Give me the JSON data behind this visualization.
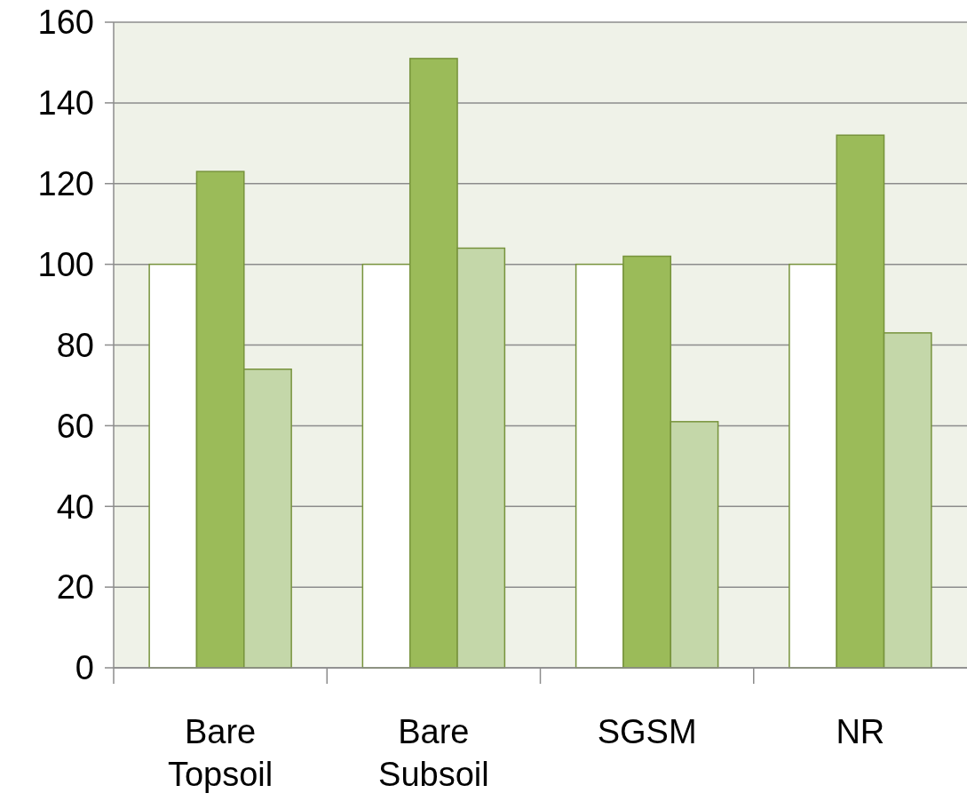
{
  "chart_data": {
    "type": "bar",
    "categories": [
      "Bare Topsoil",
      "Bare Subsoil",
      "SGSM",
      "NR"
    ],
    "series": [
      {
        "color": "#ffffff",
        "values": [
          100,
          100,
          100,
          100
        ]
      },
      {
        "color": "#9bbb59",
        "values": [
          123,
          151,
          102,
          132
        ]
      },
      {
        "color": "#c4d7a9",
        "values": [
          74,
          104,
          61,
          83
        ]
      }
    ],
    "ylim": [
      0,
      160
    ],
    "yticks": [
      0,
      20,
      40,
      60,
      80,
      100,
      120,
      140,
      160
    ],
    "grid": "y"
  }
}
